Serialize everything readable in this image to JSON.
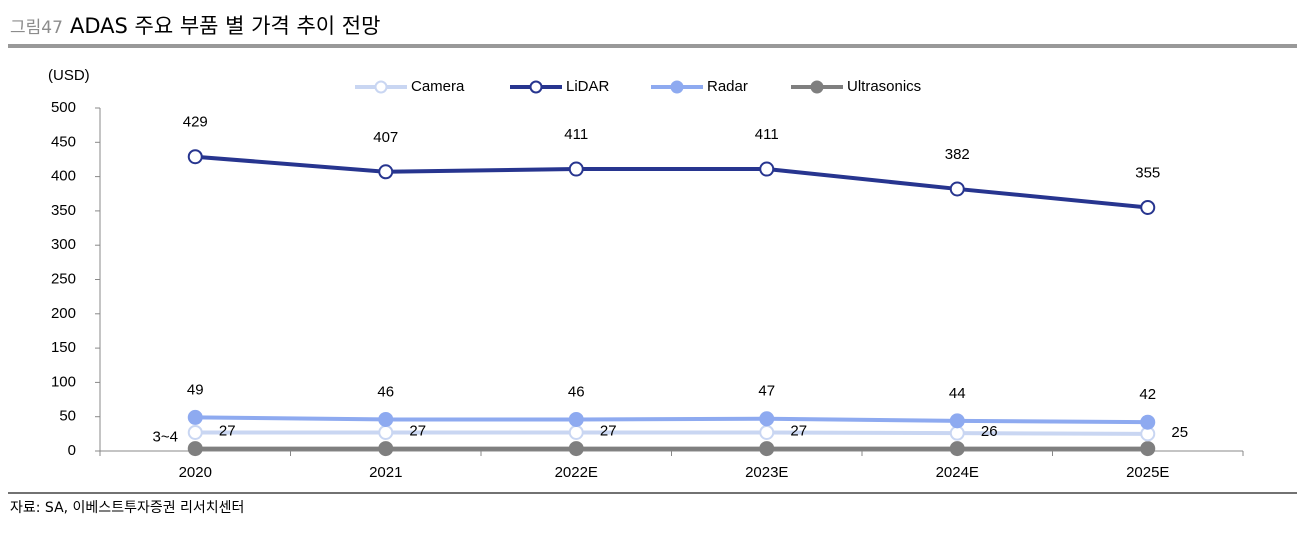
{
  "chart_data": {
    "type": "line",
    "figure_label": "그림47",
    "title": "ADAS 주요 부품 별 가격 추이 전망",
    "y_unit_label": "(USD)",
    "source": "자료: SA, 이베스트투자증권 리서치센터",
    "categories": [
      "2020",
      "2021",
      "2022E",
      "2023E",
      "2024E",
      "2025E"
    ],
    "ylim": [
      0,
      500
    ],
    "yticks": [
      0,
      50,
      100,
      150,
      200,
      250,
      300,
      350,
      400,
      450,
      500
    ],
    "grid": false,
    "series": [
      {
        "name": "Camera",
        "color": "#c9d6f2",
        "marker": "hollow",
        "values": [
          27,
          27,
          27,
          27,
          26,
          25
        ]
      },
      {
        "name": "LiDAR",
        "color": "#27358f",
        "marker": "hollow",
        "values": [
          429,
          407,
          411,
          411,
          382,
          355
        ]
      },
      {
        "name": "Radar",
        "color": "#8eaaf0",
        "marker": "filled",
        "values": [
          49,
          46,
          46,
          47,
          44,
          42
        ]
      },
      {
        "name": "Ultrasonics",
        "color": "#7f7f7f",
        "marker": "filled",
        "values": [
          3.5,
          3.5,
          3.5,
          3.5,
          3.5,
          3.5
        ],
        "value_labels": [
          "3~4",
          null,
          null,
          null,
          null,
          null
        ]
      }
    ]
  }
}
